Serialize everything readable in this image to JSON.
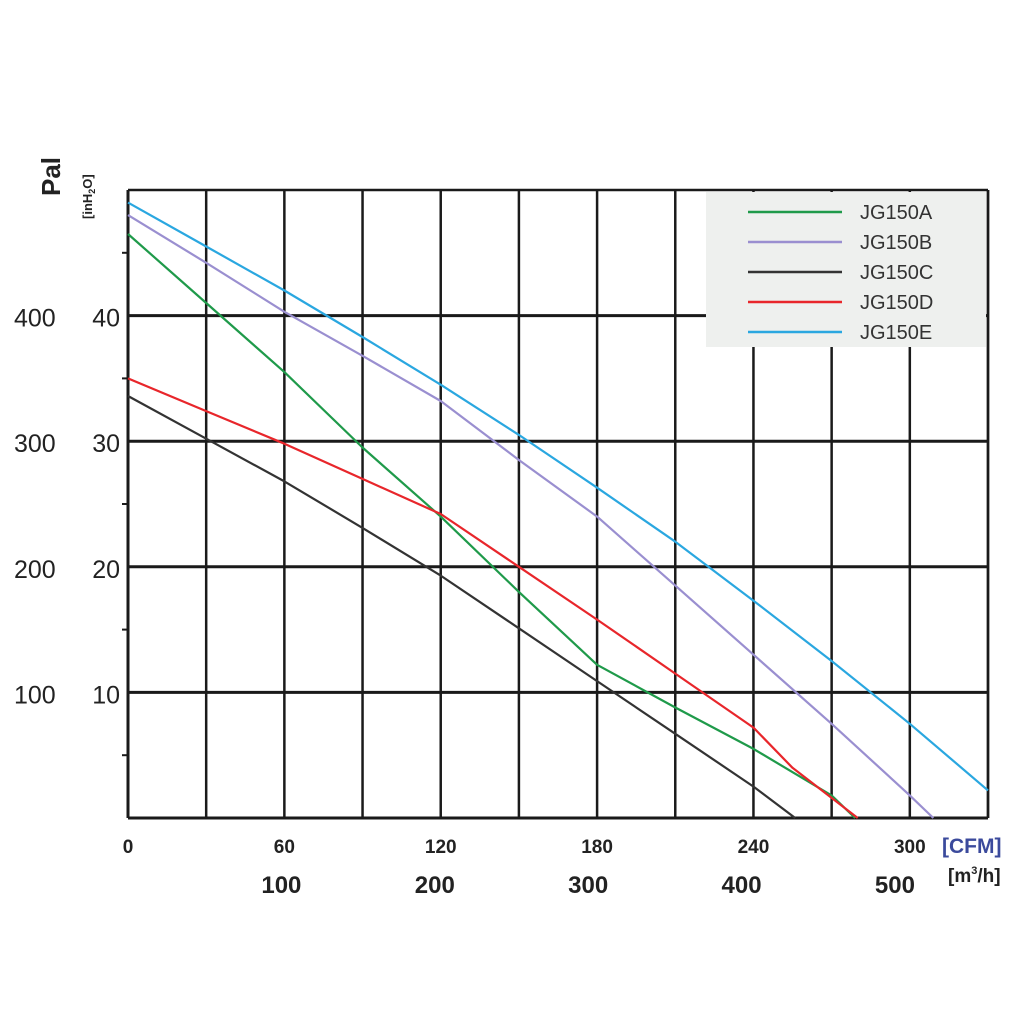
{
  "chart_data": {
    "type": "line",
    "title": "",
    "y_label_main": "Pal",
    "y_label_sub": "[inH",
    "y_label_sub_2": "2",
    "y_label_sub_3": "O]",
    "x_unit_main": "[CFM]",
    "x_unit_sub": "[m",
    "x_unit_sub_sup": "3",
    "x_unit_sub_end": "/h]",
    "xlim": [
      0,
      330
    ],
    "ylim": [
      0,
      50
    ],
    "x_ticks": [
      "0",
      "60",
      "120",
      "180",
      "240",
      "300"
    ],
    "x_ticks_m3h": [
      "100",
      "200",
      "300",
      "400",
      "500"
    ],
    "y_ticks_inh2o": [
      "10",
      "20",
      "30",
      "40"
    ],
    "y_ticks_pa": [
      "100",
      "200",
      "300",
      "400"
    ],
    "grid": true,
    "legend_position": "top-right",
    "series": [
      {
        "name": "JG150A",
        "color": "#1f9a4a",
        "x": [
          0,
          30,
          60,
          90,
          120,
          150,
          180,
          210,
          240,
          270,
          279
        ],
        "y": [
          46.5,
          41,
          35.5,
          29.5,
          24,
          18,
          12.2,
          8.8,
          5.5,
          1.8,
          0
        ]
      },
      {
        "name": "JG150B",
        "color": "#9a8fd0",
        "x": [
          0,
          30,
          60,
          90,
          120,
          150,
          180,
          210,
          240,
          270,
          300,
          309
        ],
        "y": [
          48,
          44.2,
          40.3,
          36.8,
          33.2,
          28.5,
          24,
          18.5,
          13,
          7.5,
          1.8,
          0
        ]
      },
      {
        "name": "JG150C",
        "color": "#333333",
        "x": [
          0,
          30,
          60,
          90,
          120,
          150,
          180,
          210,
          240,
          256
        ],
        "y": [
          33.6,
          30.2,
          26.8,
          23.1,
          19.3,
          15.1,
          10.9,
          6.7,
          2.5,
          0
        ]
      },
      {
        "name": "JG150D",
        "color": "#e8262b",
        "x": [
          0,
          30,
          60,
          90,
          120,
          150,
          180,
          210,
          240,
          255,
          280
        ],
        "y": [
          35,
          32.4,
          29.8,
          27,
          24.2,
          20,
          15.8,
          11.5,
          7.2,
          4,
          0
        ]
      },
      {
        "name": "JG150E",
        "color": "#2aa7e0",
        "x": [
          0,
          30,
          60,
          90,
          120,
          150,
          180,
          210,
          240,
          270,
          300,
          330
        ],
        "y": [
          49,
          45.5,
          42,
          38.3,
          34.5,
          30.5,
          26.3,
          22,
          17.3,
          12.5,
          7.5,
          2.2
        ]
      }
    ]
  }
}
